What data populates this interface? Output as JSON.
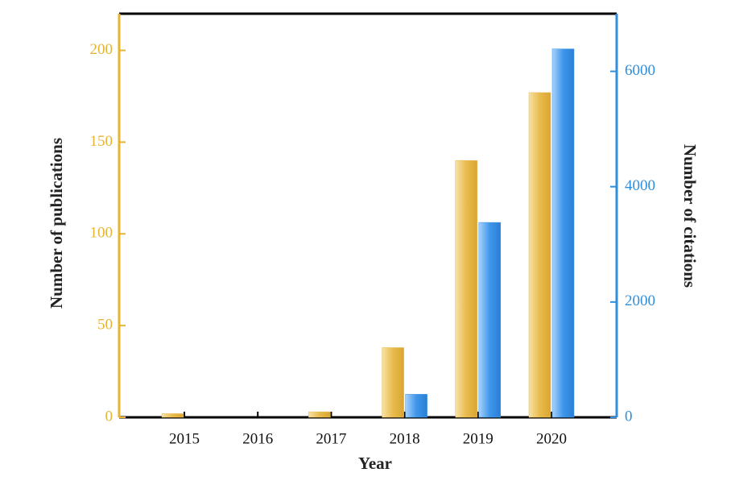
{
  "chart_data": {
    "type": "bar",
    "x_label": "Year",
    "y_label": "Number of publications",
    "y2_label": "Number of citations",
    "categories": [
      "2015",
      "2016",
      "2017",
      "2018",
      "2019",
      "2020"
    ],
    "series": [
      {
        "name": "Number of publications",
        "color": "#e9bb4c",
        "values": [
          2,
          0,
          3,
          38,
          140,
          177
        ]
      },
      {
        "name": "Number of citations",
        "color": "#3f96ea",
        "axis": "y2",
        "values": [
          0,
          0,
          0,
          400,
          3380,
          6390
        ]
      }
    ],
    "ylim": [
      0,
      220
    ],
    "yticks": [
      0,
      50,
      100,
      150,
      200
    ],
    "y2lim": [
      0,
      7000
    ],
    "y2ticks": [
      0,
      2000,
      4000,
      6000
    ],
    "y_axis_color": "#e6b430",
    "y2_axis_color": "#2f8fdc"
  }
}
